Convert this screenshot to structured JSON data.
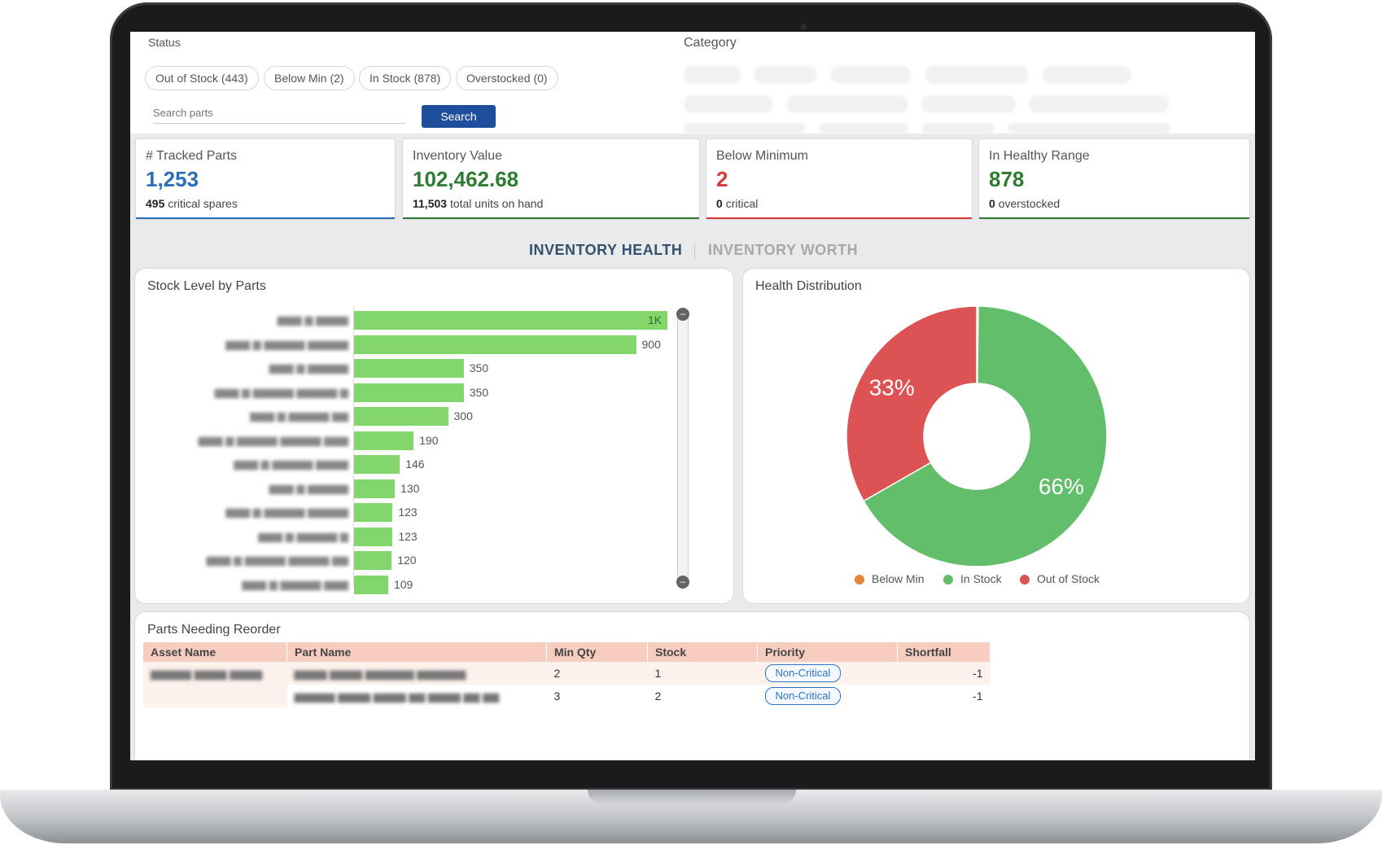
{
  "filters": {
    "status_label": "Status",
    "category_label": "Category",
    "status_chips": [
      "Out of Stock (443)",
      "Below Min (2)",
      "In Stock (878)",
      "Overstocked (0)"
    ],
    "search_placeholder": "Search parts",
    "search_button": "Search"
  },
  "kpis": [
    {
      "title": "# Tracked Parts",
      "value": "1,253",
      "sub_bold": "495",
      "sub": "critical spares",
      "color": "#2a6db8",
      "underline": "#2a6db8"
    },
    {
      "title": "Inventory Value",
      "value": "102,462.68",
      "sub_bold": "11,503",
      "sub": "total units on hand",
      "color": "#2e7d32",
      "underline": "#2e7d32"
    },
    {
      "title": "Below Minimum",
      "value": "2",
      "sub_bold": "0",
      "sub": "critical",
      "color": "#d63b3b",
      "underline": "#d63b3b"
    },
    {
      "title": "In Healthy Range",
      "value": "878",
      "sub_bold": "0",
      "sub": "overstocked",
      "color": "#2e7d32",
      "underline": "#2e7d32"
    }
  ],
  "tabs": {
    "active": "INVENTORY HEALTH",
    "inactive": "INVENTORY WORTH"
  },
  "stock_chart": {
    "title": "Stock Level by Parts",
    "chart_data": {
      "type": "bar",
      "orientation": "horizontal",
      "values": [
        1000,
        900,
        350,
        350,
        300,
        190,
        146,
        130,
        123,
        123,
        120,
        109
      ],
      "value_labels": [
        "1K",
        "900",
        "350",
        "350",
        "300",
        "190",
        "146",
        "130",
        "123",
        "123",
        "120",
        "109"
      ],
      "xlim": [
        0,
        1000
      ],
      "bar_color": "#82d66b"
    }
  },
  "health_chart": {
    "title": "Health Distribution",
    "chart_data": {
      "type": "pie",
      "donut": true,
      "slices": [
        {
          "name": "Below Min",
          "value": 0.2,
          "color": "#e8823a"
        },
        {
          "name": "In Stock",
          "value": 66,
          "color": "#63be6b",
          "label": "66%"
        },
        {
          "name": "Out of Stock",
          "value": 33,
          "color": "#dd5353",
          "label": "33%"
        }
      ]
    }
  },
  "reorder": {
    "title": "Parts Needing Reorder",
    "columns": [
      "Asset Name",
      "Part Name",
      "Min Qty",
      "Stock",
      "Priority",
      "Shortfall"
    ],
    "rows": [
      {
        "min_qty": "2",
        "stock": "1",
        "priority": "Non-Critical",
        "shortfall": "-1"
      },
      {
        "min_qty": "3",
        "stock": "2",
        "priority": "Non-Critical",
        "shortfall": "-1"
      }
    ]
  }
}
